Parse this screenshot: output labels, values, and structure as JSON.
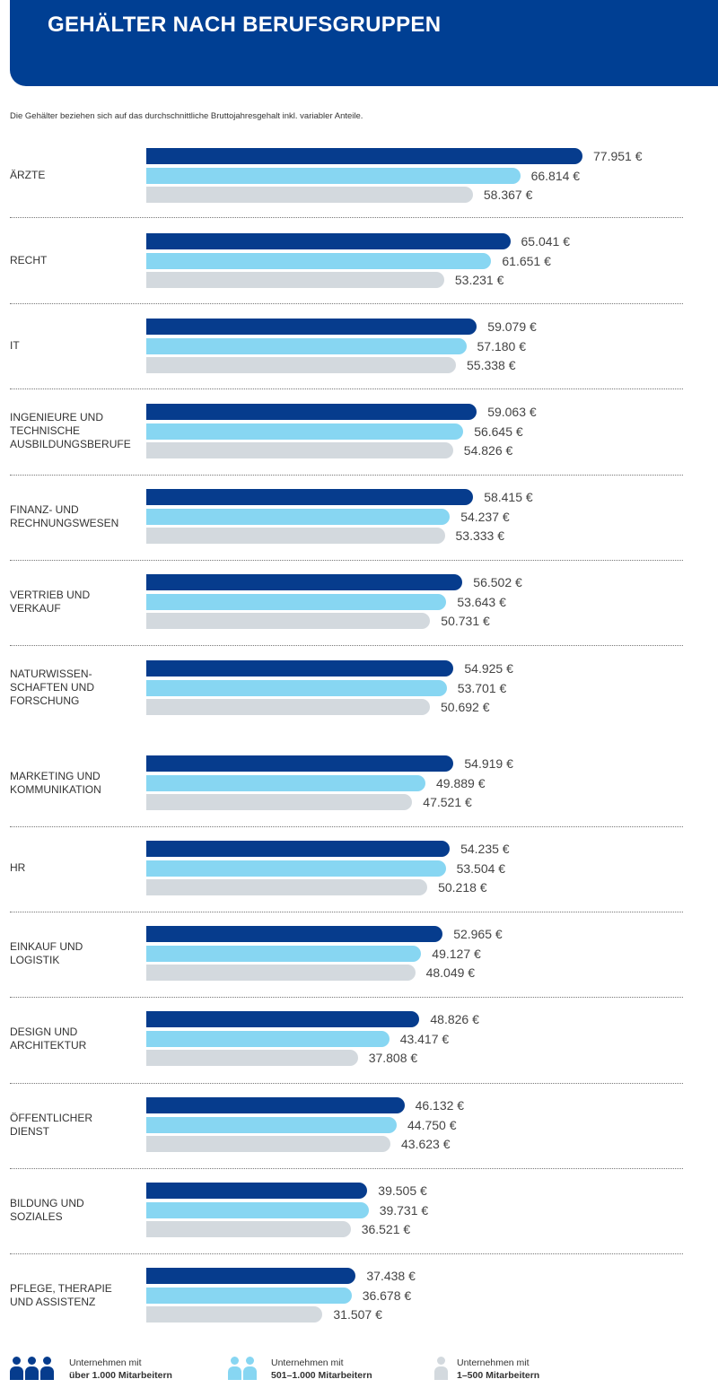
{
  "header": {
    "title": "GEHÄLTER NACH BERUFSGRUPPEN"
  },
  "subtitle": "Die Gehälter beziehen sich auf das durchschnittliche Bruttojahresgehalt inkl. variabler Anteile.",
  "colors": {
    "header_bg": "#003f93",
    "series_large": "#063c8d",
    "series_medium": "#87d6f2",
    "series_small": "#d3d9de"
  },
  "chart_data": {
    "type": "bar",
    "orientation": "horizontal",
    "title": "GEHÄLTER NACH BERUFSGRUPPEN",
    "xlabel": "",
    "ylabel": "",
    "unit": "€",
    "xlim": [
      0,
      80000
    ],
    "grid": false,
    "categories": [
      "Ärzte",
      "Recht",
      "IT",
      "Ingenieure und technische Ausbildungsberufe",
      "Finanz- und Rechnungswesen",
      "Vertrieb und Verkauf",
      "Naturwissen-schaften und Forschung",
      "Marketing und Kommunikation",
      "HR",
      "Einkauf und Logistik",
      "Design und Architektur",
      "Öffentlicher Dienst",
      "Bildung und Soziales",
      "Pflege, Therapie und Assistenz"
    ],
    "category_lines": [
      [
        "ÄRZTE"
      ],
      [
        "RECHT"
      ],
      [
        "IT"
      ],
      [
        "INGENIEURE UND",
        "TECHNISCHE",
        "AUSBILDUNGSBERUFE"
      ],
      [
        "FINANZ- UND",
        "RECHNUNGSWESEN"
      ],
      [
        "VERTRIEB UND",
        "VERKAUF"
      ],
      [
        "NATURWISSEN-",
        "SCHAFTEN UND",
        "FORSCHUNG"
      ],
      [
        "MARKETING UND",
        "KOMMUNIKATION"
      ],
      [
        "HR"
      ],
      [
        "EINKAUF UND",
        "LOGISTIK"
      ],
      [
        "DESIGN UND",
        "ARCHITEKTUR"
      ],
      [
        "ÖFFENTLICHER",
        "DIENST"
      ],
      [
        "BILDUNG UND",
        "SOZIALES"
      ],
      [
        "PFLEGE, THERAPIE",
        "UND ASSISTENZ"
      ]
    ],
    "series": [
      {
        "name": "Unternehmen mit über 1.000 Mitarbeitern",
        "values": [
          77951,
          65041,
          59079,
          59063,
          58415,
          56502,
          54925,
          54919,
          54235,
          52965,
          48826,
          46132,
          39505,
          37438
        ]
      },
      {
        "name": "Unternehmen mit 501–1.000 Mitarbeitern",
        "values": [
          66814,
          61651,
          57180,
          56645,
          54237,
          53643,
          53701,
          49889,
          53504,
          49127,
          43417,
          44750,
          39731,
          36678
        ]
      },
      {
        "name": "Unternehmen mit 1–500 Mitarbeitern",
        "values": [
          58367,
          53231,
          55338,
          54826,
          53333,
          50731,
          50692,
          47521,
          50218,
          48049,
          37808,
          43623,
          36521,
          31507
        ]
      }
    ],
    "value_labels": [
      [
        "77.951 €",
        "66.814 €",
        "58.367 €"
      ],
      [
        "65.041 €",
        "61.651 €",
        "53.231 €"
      ],
      [
        "59.079 €",
        "57.180 €",
        "55.338 €"
      ],
      [
        "59.063 €",
        "56.645 €",
        "54.826 €"
      ],
      [
        "58.415 €",
        "54.237 €",
        "53.333 €"
      ],
      [
        "56.502 €",
        "53.643 €",
        "50.731 €"
      ],
      [
        "54.925 €",
        "53.701 €",
        "50.692 €"
      ],
      [
        "54.919 €",
        "49.889 €",
        "47.521 €"
      ],
      [
        "54.235 €",
        "53.504 €",
        "50.218 €"
      ],
      [
        "52.965 €",
        "49.127 €",
        "48.049 €"
      ],
      [
        "48.826 €",
        "43.417 €",
        "37.808 €"
      ],
      [
        "46.132 €",
        "44.750 €",
        "43.623 €"
      ],
      [
        "39.505 €",
        "39.731 €",
        "36.521 €"
      ],
      [
        "37.438 €",
        "36.678 €",
        "31.507 €"
      ]
    ]
  },
  "legend": [
    {
      "line1": "Unternehmen mit",
      "line2": "über 1.000 Mitarbeitern",
      "icon": "three-persons-icon",
      "count": 3
    },
    {
      "line1": "Unternehmen mit",
      "line2": "501–1.000 Mitarbeitern",
      "icon": "two-persons-icon",
      "count": 2
    },
    {
      "line1": "Unternehmen mit",
      "line2": "1–500 Mitarbeitern",
      "icon": "one-person-icon",
      "count": 1
    }
  ]
}
